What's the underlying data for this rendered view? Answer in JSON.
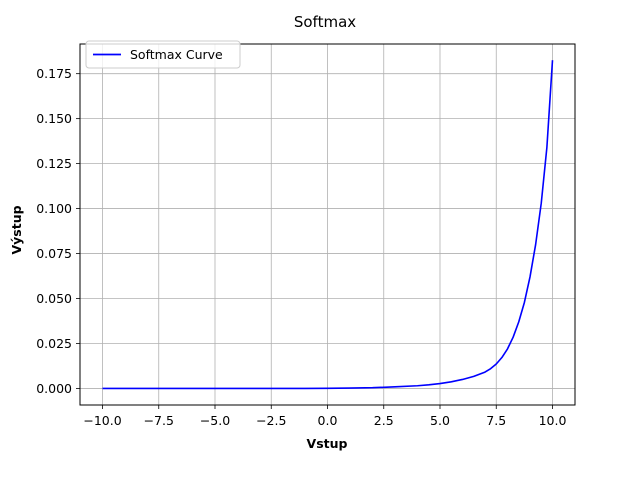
{
  "chart_data": {
    "type": "line",
    "title": "Softmax",
    "xlabel": "Vstup",
    "ylabel": "Výstup",
    "xlim": [
      -11.0,
      11.0
    ],
    "ylim": [
      -0.0092,
      0.1915
    ],
    "xticks": [
      -10.0,
      -7.5,
      -5.0,
      -2.5,
      0.0,
      2.5,
      5.0,
      7.5,
      10.0
    ],
    "xtick_labels": [
      "−10.0",
      "−7.5",
      "−5.0",
      "−2.5",
      "0.0",
      "2.5",
      "5.0",
      "7.5",
      "10.0"
    ],
    "yticks": [
      0.0,
      0.025,
      0.05,
      0.075,
      0.1,
      0.125,
      0.15,
      0.175
    ],
    "ytick_labels": [
      "0.000",
      "0.025",
      "0.050",
      "0.075",
      "0.100",
      "0.125",
      "0.150",
      "0.175"
    ],
    "grid": true,
    "legend_position": "top-left",
    "series": [
      {
        "name": "Softmax Curve",
        "color": "#0000ff",
        "x": [
          -10.0,
          -9.0,
          -8.0,
          -7.0,
          -6.0,
          -5.0,
          -4.0,
          -3.0,
          -2.0,
          -1.0,
          0.0,
          1.0,
          2.0,
          3.0,
          4.0,
          4.5,
          5.0,
          5.5,
          6.0,
          6.5,
          7.0,
          7.25,
          7.5,
          7.75,
          8.0,
          8.25,
          8.5,
          8.75,
          9.0,
          9.25,
          9.5,
          9.75,
          10.0
        ],
        "y": [
          0.0,
          0.0,
          0.0,
          0.0,
          0.0,
          0.0,
          0.0,
          0.0,
          0.0,
          0.0,
          0.0001,
          0.0002,
          0.0004,
          0.0009,
          0.0015,
          0.002,
          0.0027,
          0.0037,
          0.005,
          0.0067,
          0.0091,
          0.011,
          0.0136,
          0.0172,
          0.022,
          0.0285,
          0.037,
          0.0478,
          0.062,
          0.08,
          0.103,
          0.134,
          0.1825
        ]
      }
    ]
  }
}
